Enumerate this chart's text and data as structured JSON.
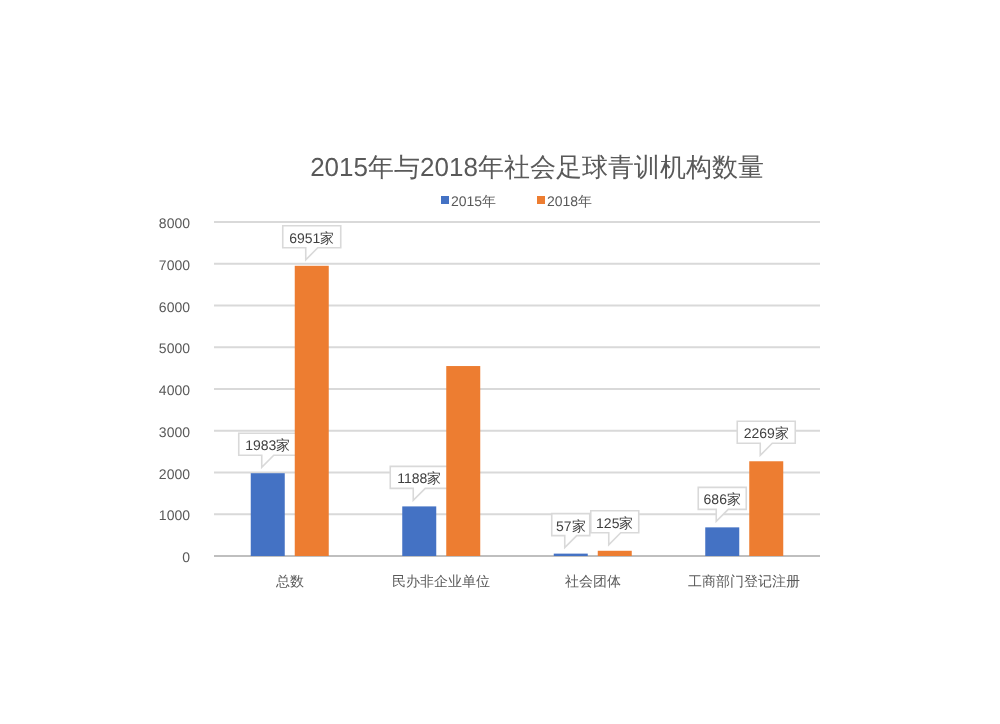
{
  "chart_data": {
    "type": "bar",
    "title": "2015年与2018年社会足球青训机构数量",
    "categories": [
      "总数",
      "民办非企业单位",
      "社会团体",
      "工商部门登记注册"
    ],
    "series": [
      {
        "name": "2015年",
        "color": "#4472c4",
        "values": [
          1983,
          1188,
          57,
          686
        ],
        "value_labels": [
          "1983家",
          "1188家",
          "57家",
          "686家"
        ]
      },
      {
        "name": "2018年",
        "color": "#ed7d31",
        "values": [
          6951,
          4550,
          125,
          2269
        ],
        "value_labels": [
          "6951家",
          null,
          "125家",
          "2269家"
        ]
      }
    ],
    "ylim": [
      0,
      8000
    ],
    "yticks": [
      0,
      1000,
      2000,
      3000,
      4000,
      5000,
      6000,
      7000,
      8000
    ],
    "grid": "y",
    "legend": "top"
  }
}
